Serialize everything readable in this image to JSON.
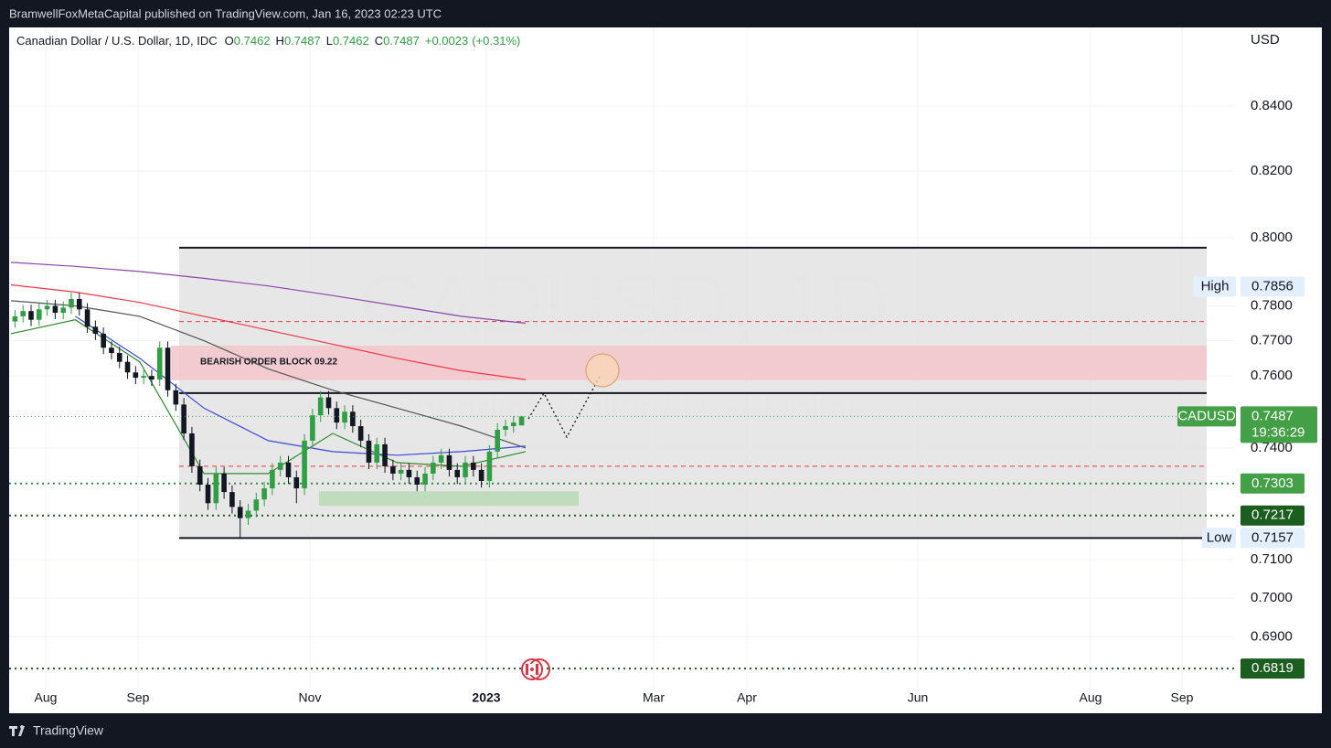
{
  "publisher_line": "BramwellFoxMetaCapital published on TradingView.com, Jan 16, 2023 02:23 UTC",
  "footer": "TradingView",
  "chart_data": {
    "type": "candlestick",
    "title": "Canadian Dollar / U.S. Dollar, 1D, IDC",
    "ohlc": [
      {
        "label": "O",
        "value": 0.7462
      },
      {
        "label": "H",
        "value": 0.7487
      },
      {
        "label": "L",
        "value": 0.7462
      },
      {
        "label": "C",
        "value": 0.7487
      }
    ],
    "change": {
      "value": 0.0023,
      "label": "+0.0023"
    },
    "change_pct": {
      "value": 0.31,
      "label": "(+0.31%)"
    },
    "watermark": "CADUSD, 1D",
    "watermark_sub": "Canadian Dollar / U.S. Dollar",
    "currency": "USD",
    "up_color": "#2f9e44",
    "down_color": "#131722",
    "log_scale": true,
    "grid": true,
    "ylim": [
      0.6707,
      0.8648
    ],
    "yticks": [
      {
        "value": 0.84,
        "label": "0.8400"
      },
      {
        "value": 0.82,
        "label": "0.8200"
      },
      {
        "value": 0.8,
        "label": "0.8000"
      },
      {
        "value": 0.78,
        "label": "0.7800"
      },
      {
        "value": 0.77,
        "label": "0.7700"
      },
      {
        "value": 0.76,
        "label": "0.7600"
      },
      {
        "value": 0.74,
        "label": "0.7400"
      },
      {
        "value": 0.71,
        "label": "0.7100"
      },
      {
        "value": 0.7,
        "label": "0.7000"
      },
      {
        "value": 0.69,
        "label": "0.6900"
      }
    ],
    "x_axis_labels": [
      "Aug",
      "Sep",
      "Nov",
      "2023",
      "Mar",
      "Apr",
      "Jun",
      "Aug",
      "Sep"
    ],
    "candles": [
      [
        0.7755,
        0.7788,
        0.7737,
        0.777
      ],
      [
        0.777,
        0.7803,
        0.7752,
        0.7785
      ],
      [
        0.7785,
        0.7803,
        0.7742,
        0.776
      ],
      [
        0.776,
        0.7808,
        0.7742,
        0.779
      ],
      [
        0.779,
        0.7818,
        0.7772,
        0.78
      ],
      [
        0.78,
        0.7818,
        0.7762,
        0.778
      ],
      [
        0.778,
        0.7813,
        0.7762,
        0.7795
      ],
      [
        0.7795,
        0.7838,
        0.7777,
        0.782
      ],
      [
        0.782,
        0.7838,
        0.7772,
        0.779
      ],
      [
        0.779,
        0.7808,
        0.7722,
        0.774
      ],
      [
        0.774,
        0.7758,
        0.7702,
        0.772
      ],
      [
        0.772,
        0.7738,
        0.7662,
        0.768
      ],
      [
        0.768,
        0.7698,
        0.7647,
        0.7665
      ],
      [
        0.7665,
        0.7683,
        0.7622,
        0.764
      ],
      [
        0.764,
        0.7658,
        0.7592,
        0.761
      ],
      [
        0.761,
        0.7628,
        0.7577,
        0.7595
      ],
      [
        0.7595,
        0.7618,
        0.7577,
        0.76
      ],
      [
        0.76,
        0.7618,
        0.7572,
        0.759
      ],
      [
        0.759,
        0.7698,
        0.7572,
        0.768
      ],
      [
        0.768,
        0.7698,
        0.7542,
        0.756
      ],
      [
        0.756,
        0.7578,
        0.7502,
        0.752
      ],
      [
        0.752,
        0.7538,
        0.7422,
        0.744
      ],
      [
        0.744,
        0.7458,
        0.7332,
        0.735
      ],
      [
        0.735,
        0.7368,
        0.7282,
        0.73
      ],
      [
        0.73,
        0.7318,
        0.7232,
        0.725
      ],
      [
        0.725,
        0.7348,
        0.7232,
        0.733
      ],
      [
        0.733,
        0.7348,
        0.7262,
        0.728
      ],
      [
        0.728,
        0.7298,
        0.7222,
        0.724
      ],
      [
        0.724,
        0.7258,
        0.7157,
        0.721
      ],
      [
        0.721,
        0.7248,
        0.7192,
        0.723
      ],
      [
        0.723,
        0.7278,
        0.7212,
        0.726
      ],
      [
        0.726,
        0.7308,
        0.7242,
        0.729
      ],
      [
        0.729,
        0.7358,
        0.7272,
        0.734
      ],
      [
        0.734,
        0.7378,
        0.7322,
        0.736
      ],
      [
        0.736,
        0.7378,
        0.7302,
        0.732
      ],
      [
        0.732,
        0.7338,
        0.725,
        0.729
      ],
      [
        0.729,
        0.7438,
        0.7272,
        0.742
      ],
      [
        0.742,
        0.7508,
        0.7402,
        0.749
      ],
      [
        0.749,
        0.7558,
        0.7472,
        0.754
      ],
      [
        0.754,
        0.7558,
        0.7492,
        0.751
      ],
      [
        0.751,
        0.7528,
        0.7452,
        0.747
      ],
      [
        0.747,
        0.7518,
        0.7452,
        0.75
      ],
      [
        0.75,
        0.7518,
        0.7442,
        0.746
      ],
      [
        0.746,
        0.7478,
        0.7402,
        0.742
      ],
      [
        0.742,
        0.7438,
        0.7342,
        0.736
      ],
      [
        0.736,
        0.7428,
        0.7342,
        0.741
      ],
      [
        0.741,
        0.7428,
        0.7332,
        0.735
      ],
      [
        0.735,
        0.7368,
        0.7312,
        0.733
      ],
      [
        0.733,
        0.7358,
        0.7312,
        0.734
      ],
      [
        0.734,
        0.7358,
        0.7302,
        0.732
      ],
      [
        0.732,
        0.7338,
        0.7282,
        0.73
      ],
      [
        0.73,
        0.7348,
        0.7282,
        0.733
      ],
      [
        0.733,
        0.7378,
        0.7312,
        0.736
      ],
      [
        0.736,
        0.7398,
        0.7342,
        0.738
      ],
      [
        0.738,
        0.7398,
        0.7322,
        0.734
      ],
      [
        0.734,
        0.7358,
        0.7302,
        0.732
      ],
      [
        0.732,
        0.7378,
        0.7302,
        0.736
      ],
      [
        0.736,
        0.7378,
        0.7322,
        0.734
      ],
      [
        0.734,
        0.7358,
        0.7292,
        0.731
      ],
      [
        0.731,
        0.7408,
        0.7292,
        0.739
      ],
      [
        0.739,
        0.7468,
        0.7372,
        0.745
      ],
      [
        0.745,
        0.7478,
        0.7432,
        0.746
      ],
      [
        0.746,
        0.7488,
        0.7442,
        0.747
      ],
      [
        0.7462,
        0.7487,
        0.7462,
        0.7487
      ]
    ],
    "indicators": [
      {
        "color": "#8e44ad",
        "values": [
          0.7927,
          0.7915,
          0.79,
          0.788,
          0.7858,
          0.783,
          0.78,
          0.777,
          0.775
        ]
      },
      {
        "color": "#f23645",
        "values": [
          0.7861,
          0.784,
          0.781,
          0.777,
          0.773,
          0.769,
          0.765,
          0.7615,
          0.759
        ]
      },
      {
        "color": "#555555",
        "values": [
          0.7815,
          0.78,
          0.777,
          0.77,
          0.762,
          0.756,
          0.751,
          0.746,
          0.74
        ]
      },
      {
        "color": "#3b4bd6",
        "values": [
          null,
          0.777,
          0.765,
          0.751,
          0.742,
          0.739,
          0.738,
          0.739,
          0.7405
        ]
      },
      {
        "color": "#2e8b2e",
        "values": [
          0.772,
          0.776,
          0.764,
          0.733,
          0.733,
          0.744,
          0.736,
          0.735,
          0.739
        ]
      }
    ],
    "boxes": [
      {
        "low": 0.7157,
        "high": 0.797,
        "color": "#e3e3e3"
      },
      {
        "low": 0.7588,
        "high": 0.7686,
        "color": "#f3c6cb",
        "label": "BEARISH ORDER BLOCK 09.22"
      },
      {
        "low": 0.7243,
        "high": 0.7282,
        "color": "#b7d9b5"
      }
    ],
    "levels": [
      {
        "value": 0.797,
        "style": "solid",
        "color": "#131722"
      },
      {
        "value": 0.7157,
        "style": "solid",
        "color": "#131722"
      },
      {
        "value": 0.7552,
        "style": "solid",
        "color": "#131722"
      },
      {
        "value": 0.7755,
        "style": "dashed",
        "color": "#f23645"
      },
      {
        "value": 0.735,
        "style": "dashed",
        "color": "#f23645"
      },
      {
        "value": 0.7303,
        "style": "dotted",
        "color": "#2f8f3a"
      },
      {
        "value": 0.7217,
        "style": "dotted",
        "color": "#1b5e20"
      },
      {
        "value": 0.6819,
        "style": "dotted",
        "color": "#1b5e20"
      }
    ],
    "price_labels": [
      {
        "name": "High",
        "value": 0.7856,
        "color": "#e3effd"
      },
      {
        "name": "Low",
        "value": 0.7157,
        "color": "#e3effd"
      },
      {
        "name": "CADUSD",
        "value": 0.7487,
        "extra": "19:36:29",
        "color": "#43a047"
      },
      {
        "value": 0.7303,
        "color": "#43a047"
      },
      {
        "value": 0.7217,
        "color": "#1b5e20"
      },
      {
        "value": 0.6819,
        "color": "#1b5e20"
      }
    ]
  }
}
